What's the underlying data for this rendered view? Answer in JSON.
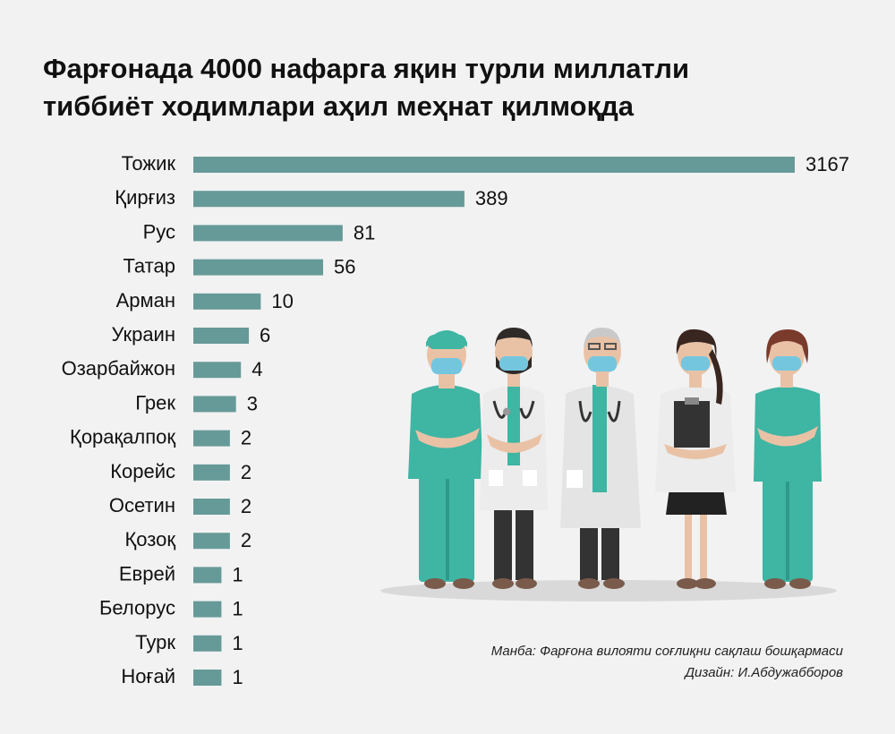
{
  "title": {
    "line1": "Фарғонада 4000 нафарга яқин турли миллатли",
    "line2": "тиббиёт ходимлари аҳил меҳнат қилмоқда"
  },
  "chart_data": {
    "type": "bar",
    "orientation": "horizontal",
    "title": "Фарғонада 4000 нафарга яқин турли миллатли тиббиёт ходимлари аҳил меҳнат қилмоқда",
    "categories": [
      "Тожик",
      "Қирғиз",
      "Рус",
      "Татар",
      "Арман",
      "Украин",
      "Озарбайжон",
      "Грек",
      "Қорақалпоқ",
      "Корейс",
      "Осетин",
      "Қозоқ",
      "Еврей",
      "Белорус",
      "Турк",
      "Ноғай"
    ],
    "values": [
      3167,
      389,
      81,
      56,
      10,
      6,
      4,
      3,
      2,
      2,
      2,
      2,
      1,
      1,
      1,
      1
    ],
    "bar_color": "#669a98",
    "xlabel": "",
    "ylabel": "",
    "grid": false
  },
  "footer": {
    "source": "Манба: Фарғона вилояти соғлиқни сақлаш бошқармаси",
    "design": "Дизайн: И.Абдужабборов"
  },
  "colors": {
    "background": "#f2f2f2",
    "scrubs": "#3fb5a3",
    "mask": "#74c6df",
    "coat": "#ececec"
  }
}
